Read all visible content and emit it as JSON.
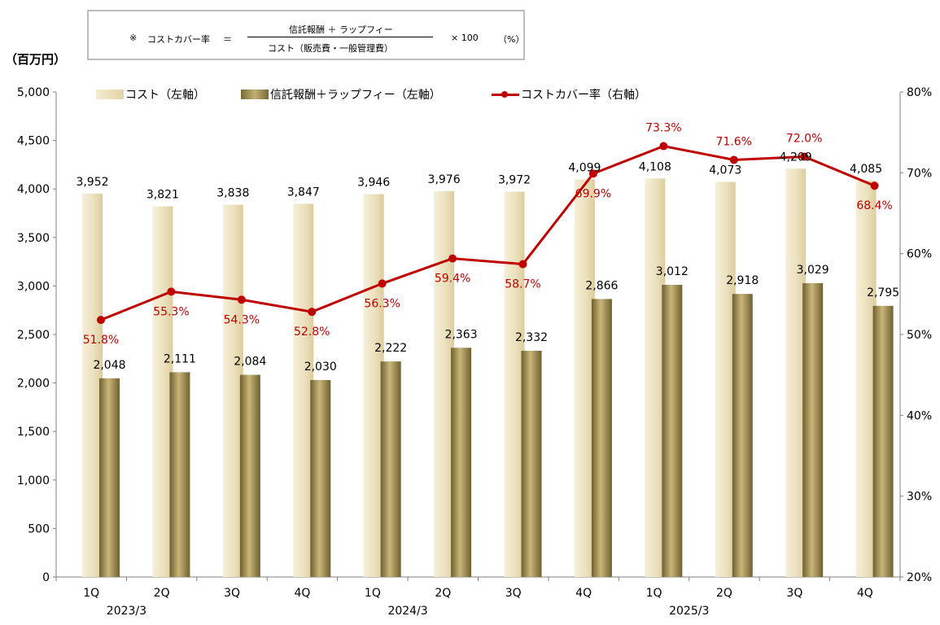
{
  "formula": {
    "mark": "※",
    "lhs": "コストカバー率",
    "eq": "＝",
    "numerator": "信託報酬 ＋ ラップフィー",
    "denominator": "コスト（販売費・一般管理費）",
    "multiplier": "× 100",
    "unit": "（%）"
  },
  "unit_label": "（百万円）",
  "legend": {
    "cost": "コスト（左軸）",
    "fee": "信託報酬＋ラップフィー（左軸）",
    "ratio": "コストカバー率（右軸）"
  },
  "colors": {
    "ratio_line": "#c00000",
    "cost_bar": "#e8dcb5",
    "fee_bar": "#a89658"
  },
  "chart_data": {
    "type": "bar",
    "categories": [
      "1Q",
      "2Q",
      "3Q",
      "4Q",
      "1Q",
      "2Q",
      "3Q",
      "4Q",
      "1Q",
      "2Q",
      "3Q",
      "4Q"
    ],
    "year_labels": [
      {
        "after_index": 0,
        "label": "2023/3"
      },
      {
        "after_index": 4,
        "label": "2024/3"
      },
      {
        "after_index": 8,
        "label": "2025/3"
      }
    ],
    "series": [
      {
        "name": "コスト（左軸）",
        "axis": "left",
        "values": [
          3952,
          3821,
          3838,
          3847,
          3946,
          3976,
          3972,
          4099,
          4108,
          4073,
          4209,
          4085
        ],
        "labels": [
          "3,952",
          "3,821",
          "3,838",
          "3,847",
          "3,946",
          "3,976",
          "3,972",
          "4,099",
          "4,108",
          "4,073",
          "4,209",
          "4,085"
        ]
      },
      {
        "name": "信託報酬＋ラップフィー（左軸）",
        "axis": "left",
        "values": [
          2048,
          2111,
          2084,
          2030,
          2222,
          2363,
          2332,
          2866,
          3012,
          2918,
          3029,
          2795
        ],
        "labels": [
          "2,048",
          "2,111",
          "2,084",
          "2,030",
          "2,222",
          "2,363",
          "2,332",
          "2,866",
          "3,012",
          "2,918",
          "3,029",
          "2,795"
        ]
      },
      {
        "name": "コストカバー率（右軸）",
        "axis": "right",
        "type": "line",
        "values": [
          51.8,
          55.3,
          54.3,
          52.8,
          56.3,
          59.4,
          58.7,
          69.9,
          73.3,
          71.6,
          72.0,
          68.4
        ],
        "labels": [
          "51.8%",
          "55.3%",
          "54.3%",
          "52.8%",
          "56.3%",
          "59.4%",
          "58.7%",
          "69.9%",
          "73.3%",
          "71.6%",
          "72.0%",
          "68.4%"
        ]
      }
    ],
    "ylim_left": [
      0,
      5000
    ],
    "yticks_left": [
      "0",
      "500",
      "1,000",
      "1,500",
      "2,000",
      "2,500",
      "3,000",
      "3,500",
      "4,000",
      "4,500",
      "5,000"
    ],
    "ylim_right": [
      20,
      80
    ],
    "yticks_right": [
      "20%",
      "30%",
      "40%",
      "50%",
      "60%",
      "70%",
      "80%"
    ],
    "grid": false,
    "legend_position": "top"
  }
}
